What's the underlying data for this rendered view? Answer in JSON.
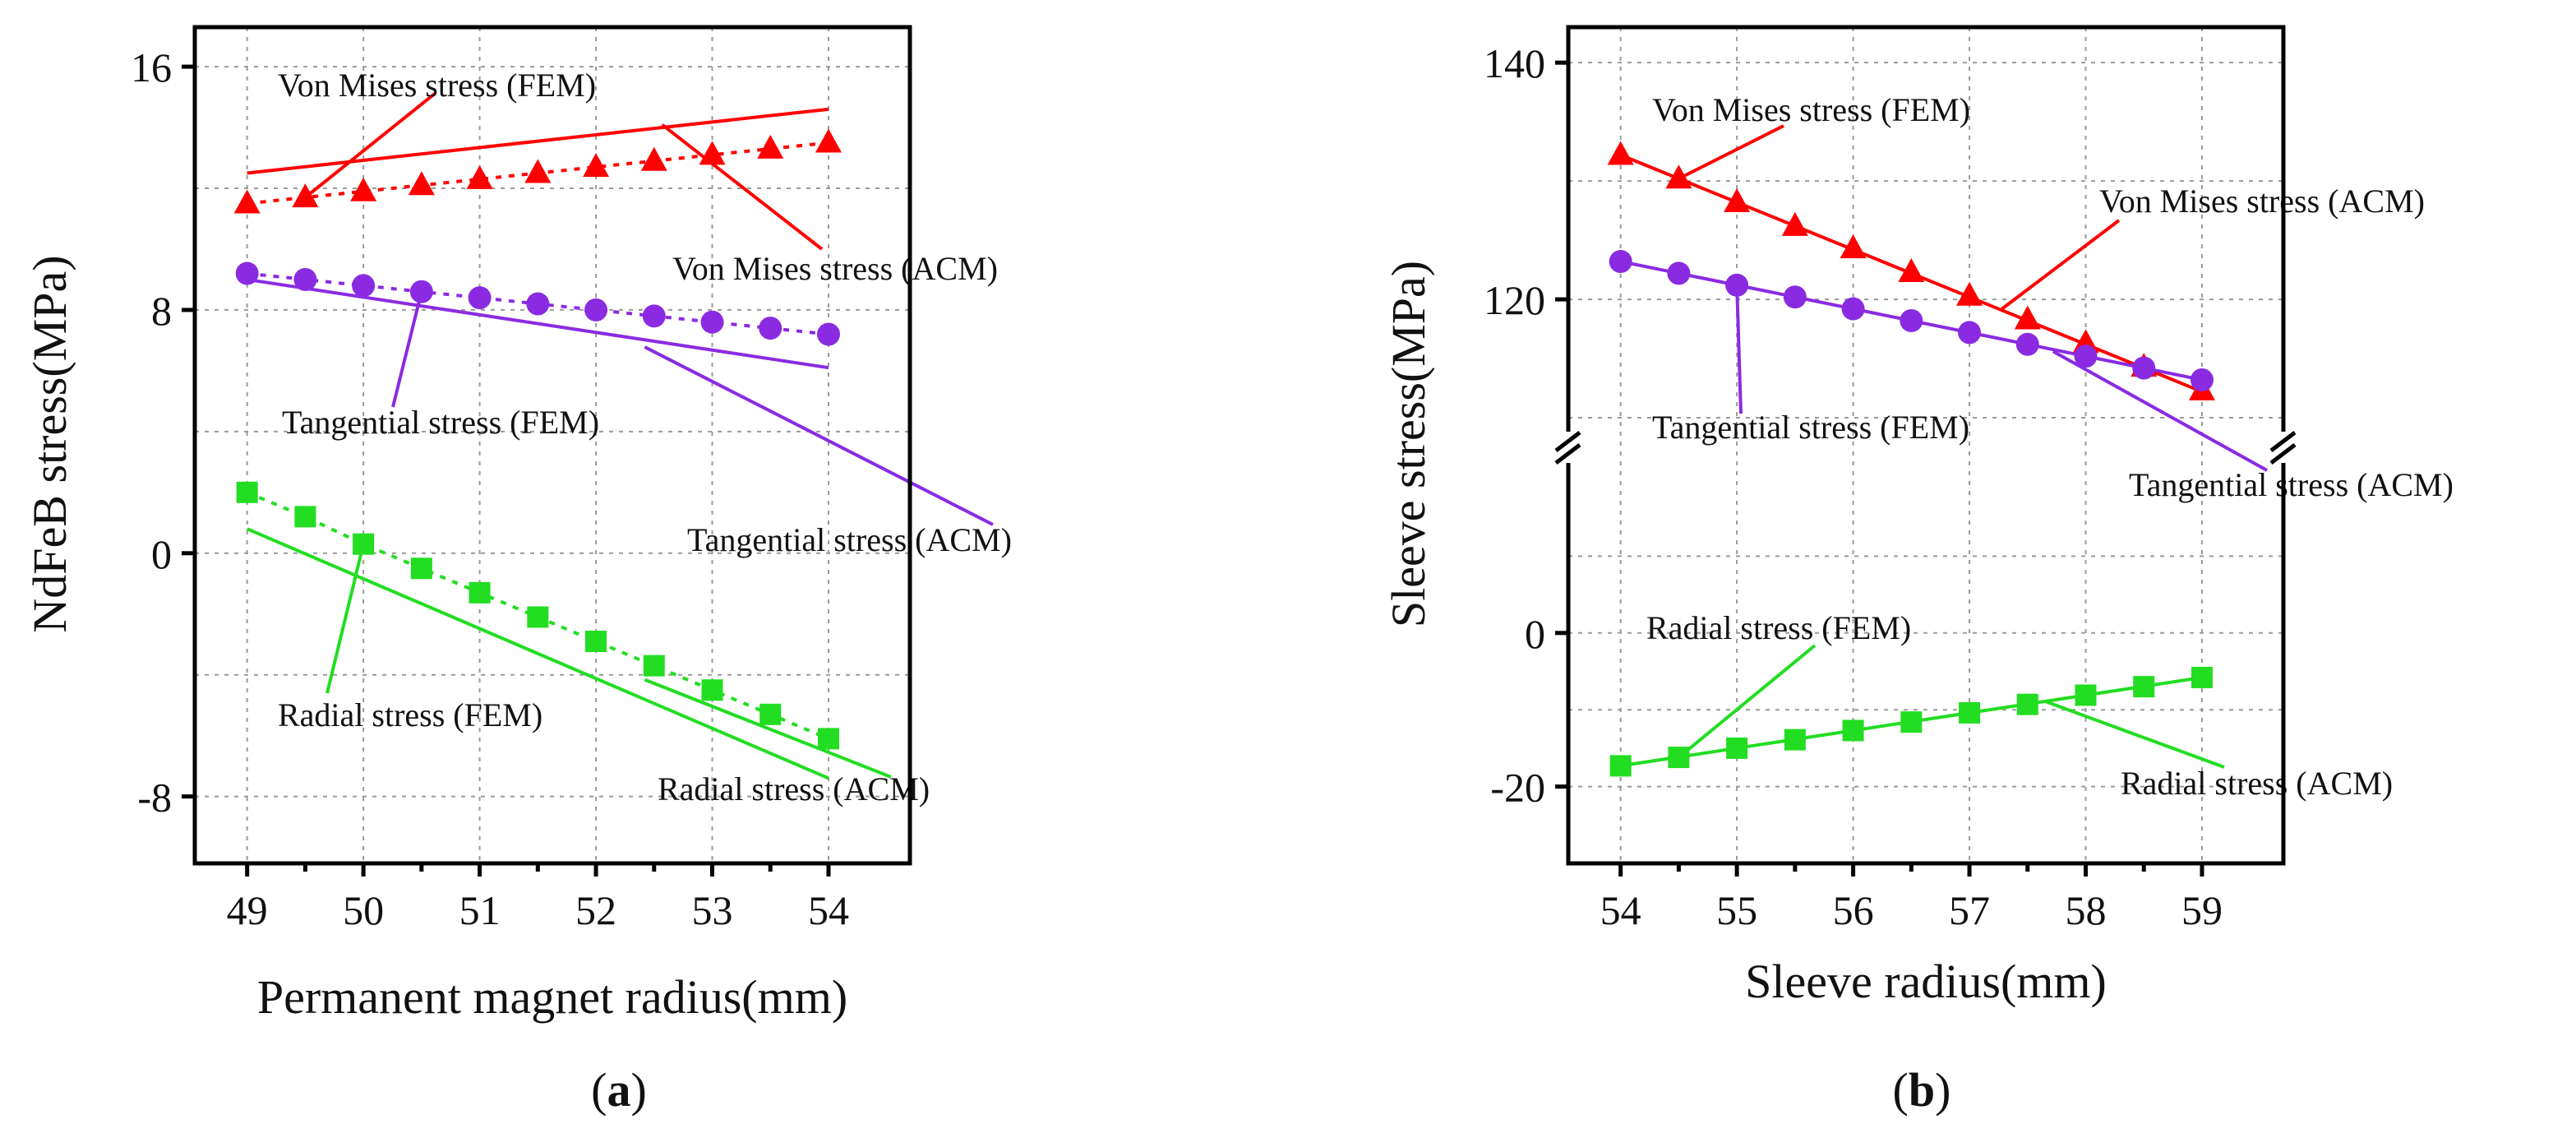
{
  "chart_data": [
    {
      "type": "line",
      "panel_label": "a",
      "xlabel": "Permanent magnet radius(mm)",
      "ylabel": "NdFeB stress(MPa)",
      "xlim": [
        48.55,
        54.7
      ],
      "ylim": [
        -10.2,
        17.3
      ],
      "x_ticks": [
        49,
        50,
        51,
        52,
        53,
        54
      ],
      "x_tick_labels": [
        "49",
        "50",
        "51",
        "52",
        "53",
        "54"
      ],
      "y_ticks": [
        -8,
        0,
        8,
        16
      ],
      "y_tick_labels": [
        "-8",
        "0",
        "8",
        "16"
      ],
      "grid": true,
      "series": [
        {
          "name": "Von Mises stress (FEM)",
          "method": "FEM",
          "marker": "triangle",
          "line": "dotted",
          "color": "#ff0000",
          "x": [
            49,
            49.5,
            50,
            50.5,
            51,
            51.5,
            52,
            52.5,
            53,
            53.5,
            54
          ],
          "y": [
            11.5,
            11.7,
            11.9,
            12.1,
            12.3,
            12.5,
            12.7,
            12.9,
            13.1,
            13.3,
            13.5
          ]
        },
        {
          "name": "Von Mises stress (ACM)",
          "method": "ACM",
          "marker": "none",
          "line": "solid",
          "color": "#ff0000",
          "x": [
            49,
            54
          ],
          "y": [
            12.5,
            14.6
          ]
        },
        {
          "name": "Tangential stress (FEM)",
          "method": "FEM",
          "marker": "circle",
          "line": "dotted",
          "color": "#8a2be2",
          "x": [
            49,
            49.5,
            50,
            50.5,
            51,
            51.5,
            52,
            52.5,
            53,
            53.5,
            54
          ],
          "y": [
            9.2,
            9.0,
            8.8,
            8.6,
            8.4,
            8.2,
            8.0,
            7.8,
            7.6,
            7.4,
            7.2
          ]
        },
        {
          "name": "Tangential stress (ACM)",
          "method": "ACM",
          "marker": "none",
          "line": "solid",
          "color": "#8a2be2",
          "x": [
            49,
            54
          ],
          "y": [
            9.0,
            6.1
          ]
        },
        {
          "name": "Radial stress (FEM)",
          "method": "FEM",
          "marker": "square",
          "line": "dotted",
          "color": "#22dd22",
          "x": [
            49,
            49.5,
            50,
            50.5,
            51,
            51.5,
            52,
            52.5,
            53,
            53.5,
            54
          ],
          "y": [
            2.0,
            1.2,
            0.3,
            -0.5,
            -1.3,
            -2.1,
            -2.9,
            -3.7,
            -4.5,
            -5.3,
            -6.1
          ]
        },
        {
          "name": "Radial stress (ACM)",
          "method": "ACM",
          "marker": "none",
          "line": "solid",
          "color": "#22dd22",
          "x": [
            49,
            54
          ],
          "y": [
            0.8,
            -7.4
          ]
        }
      ],
      "annotations": [
        {
          "text": "Von Mises stress (FEM)",
          "series": 0
        },
        {
          "text": "Von Mises stress (ACM)",
          "series": 1
        },
        {
          "text": "Tangential stress (FEM)",
          "series": 2
        },
        {
          "text": "Tangential stress (ACM)",
          "series": 3
        },
        {
          "text": "Radial stress (FEM)",
          "series": 4
        },
        {
          "text": "Radial stress (ACM)",
          "series": 5
        }
      ]
    },
    {
      "type": "line",
      "panel_label": "b",
      "xlabel": "Sleeve radius(mm)",
      "ylabel": "Sleeve stress(MPa)",
      "xlim": [
        53.55,
        59.7
      ],
      "axis_break": true,
      "upper_ylim": [
        105,
        143
      ],
      "lower_ylim": [
        -30,
        20
      ],
      "x_ticks": [
        54,
        55,
        56,
        57,
        58,
        59
      ],
      "x_tick_labels": [
        "54",
        "55",
        "56",
        "57",
        "58",
        "59"
      ],
      "y_ticks": [
        -20,
        0,
        120,
        140
      ],
      "y_tick_labels": [
        "-20",
        "0",
        "120",
        "140"
      ],
      "grid": true,
      "series": [
        {
          "name": "Von Mises stress (FEM)",
          "method": "FEM",
          "marker": "triangle",
          "line": "none",
          "color": "#ff0000",
          "x": [
            54,
            54.5,
            55,
            55.5,
            56,
            56.5,
            57,
            57.5,
            58,
            58.5,
            59
          ],
          "y": [
            132.2,
            130.2,
            128.2,
            126.2,
            124.3,
            122.3,
            120.3,
            118.3,
            116.3,
            114.3,
            112.3
          ]
        },
        {
          "name": "Von Mises stress (ACM)",
          "method": "ACM",
          "marker": "none",
          "line": "solid",
          "color": "#ff0000",
          "x": [
            54,
            59
          ],
          "y": [
            132.2,
            112.2
          ]
        },
        {
          "name": "Tangential stress (FEM)",
          "method": "FEM",
          "marker": "circle",
          "line": "none",
          "color": "#8a2be2",
          "x": [
            54,
            54.5,
            55,
            55.5,
            56,
            56.5,
            57,
            57.5,
            58,
            58.5,
            59
          ],
          "y": [
            123.2,
            122.2,
            121.2,
            120.2,
            119.2,
            118.2,
            117.2,
            116.2,
            115.2,
            114.2,
            113.2
          ]
        },
        {
          "name": "Tangential stress (ACM)",
          "method": "ACM",
          "marker": "none",
          "line": "solid",
          "color": "#8a2be2",
          "x": [
            54,
            59
          ],
          "y": [
            123.2,
            113.2
          ]
        },
        {
          "name": "Radial stress (FEM)",
          "method": "FEM",
          "marker": "square",
          "line": "none",
          "color": "#22dd22",
          "x": [
            54,
            54.5,
            55,
            55.5,
            56,
            56.5,
            57,
            57.5,
            58,
            58.5,
            59
          ],
          "y": [
            -17.3,
            -16.2,
            -15.0,
            -13.9,
            -12.7,
            -11.6,
            -10.4,
            -9.3,
            -8.1,
            -7.0,
            -5.8
          ]
        },
        {
          "name": "Radial stress (ACM)",
          "method": "ACM",
          "marker": "none",
          "line": "solid",
          "color": "#22dd22",
          "x": [
            54,
            59
          ],
          "y": [
            -17.3,
            -5.8
          ]
        }
      ],
      "annotations": [
        {
          "text": "Von Mises stress (FEM)",
          "series": 0
        },
        {
          "text": "Von Mises stress (ACM)",
          "series": 1
        },
        {
          "text": "Tangential stress (FEM)",
          "series": 2
        },
        {
          "text": "Tangential stress (ACM)",
          "series": 3
        },
        {
          "text": "Radial stress (FEM)",
          "series": 4
        },
        {
          "text": "Radial stress (ACM)",
          "series": 5
        }
      ]
    }
  ]
}
